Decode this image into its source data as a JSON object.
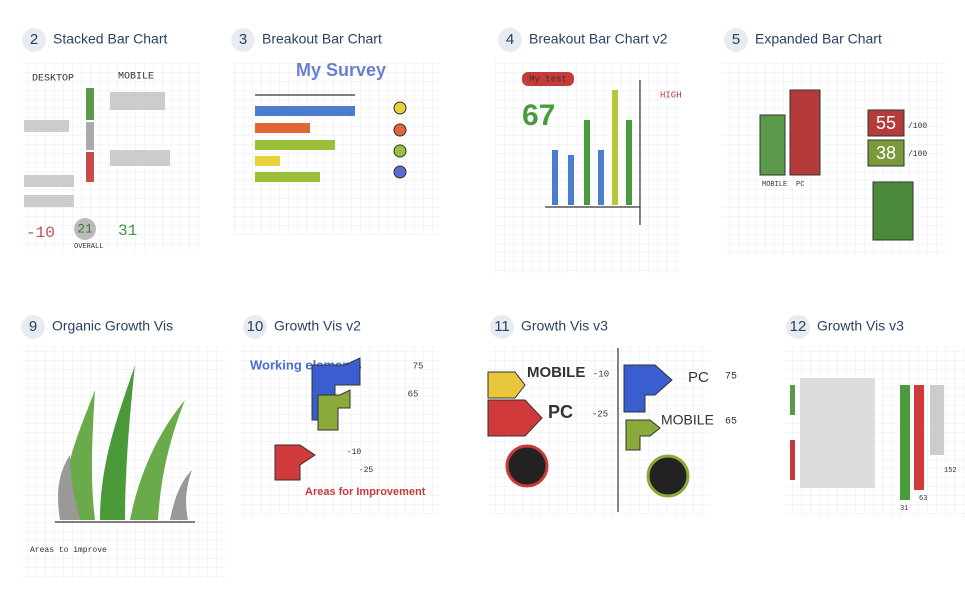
{
  "cards": [
    {
      "number": 2,
      "title": "Stacked Bar Chart",
      "labels": [
        "DESKTOP",
        "MOBILE",
        "-10",
        "21",
        "31",
        "OVERALL"
      ]
    },
    {
      "number": 3,
      "title": "Breakout Bar Chart",
      "labels": [
        "My Survey"
      ]
    },
    {
      "number": 4,
      "title": "Breakout Bar Chart v2",
      "labels": [
        "My test",
        "67",
        "HIGH"
      ]
    },
    {
      "number": 5,
      "title": "Expanded Bar Chart",
      "labels": [
        "55",
        "38",
        "/100",
        "/100",
        "MOBILE",
        "PC"
      ]
    },
    {
      "number": 9,
      "title": "Organic Growth Vis",
      "labels": [
        "Areas to improve"
      ]
    },
    {
      "number": 10,
      "title": "Growth Vis v2",
      "labels": [
        "Working elements",
        "Areas for Improvement",
        "75",
        "65",
        "-10",
        "-25"
      ]
    },
    {
      "number": 11,
      "title": "Growth Vis v3",
      "labels": [
        "MOBILE",
        "PC",
        "-10",
        "-25",
        "PC",
        "MOBILE",
        "75",
        "65"
      ]
    },
    {
      "number": 12,
      "title": "Growth Vis v3",
      "labels": [
        "31",
        "63",
        "152"
      ]
    }
  ]
}
